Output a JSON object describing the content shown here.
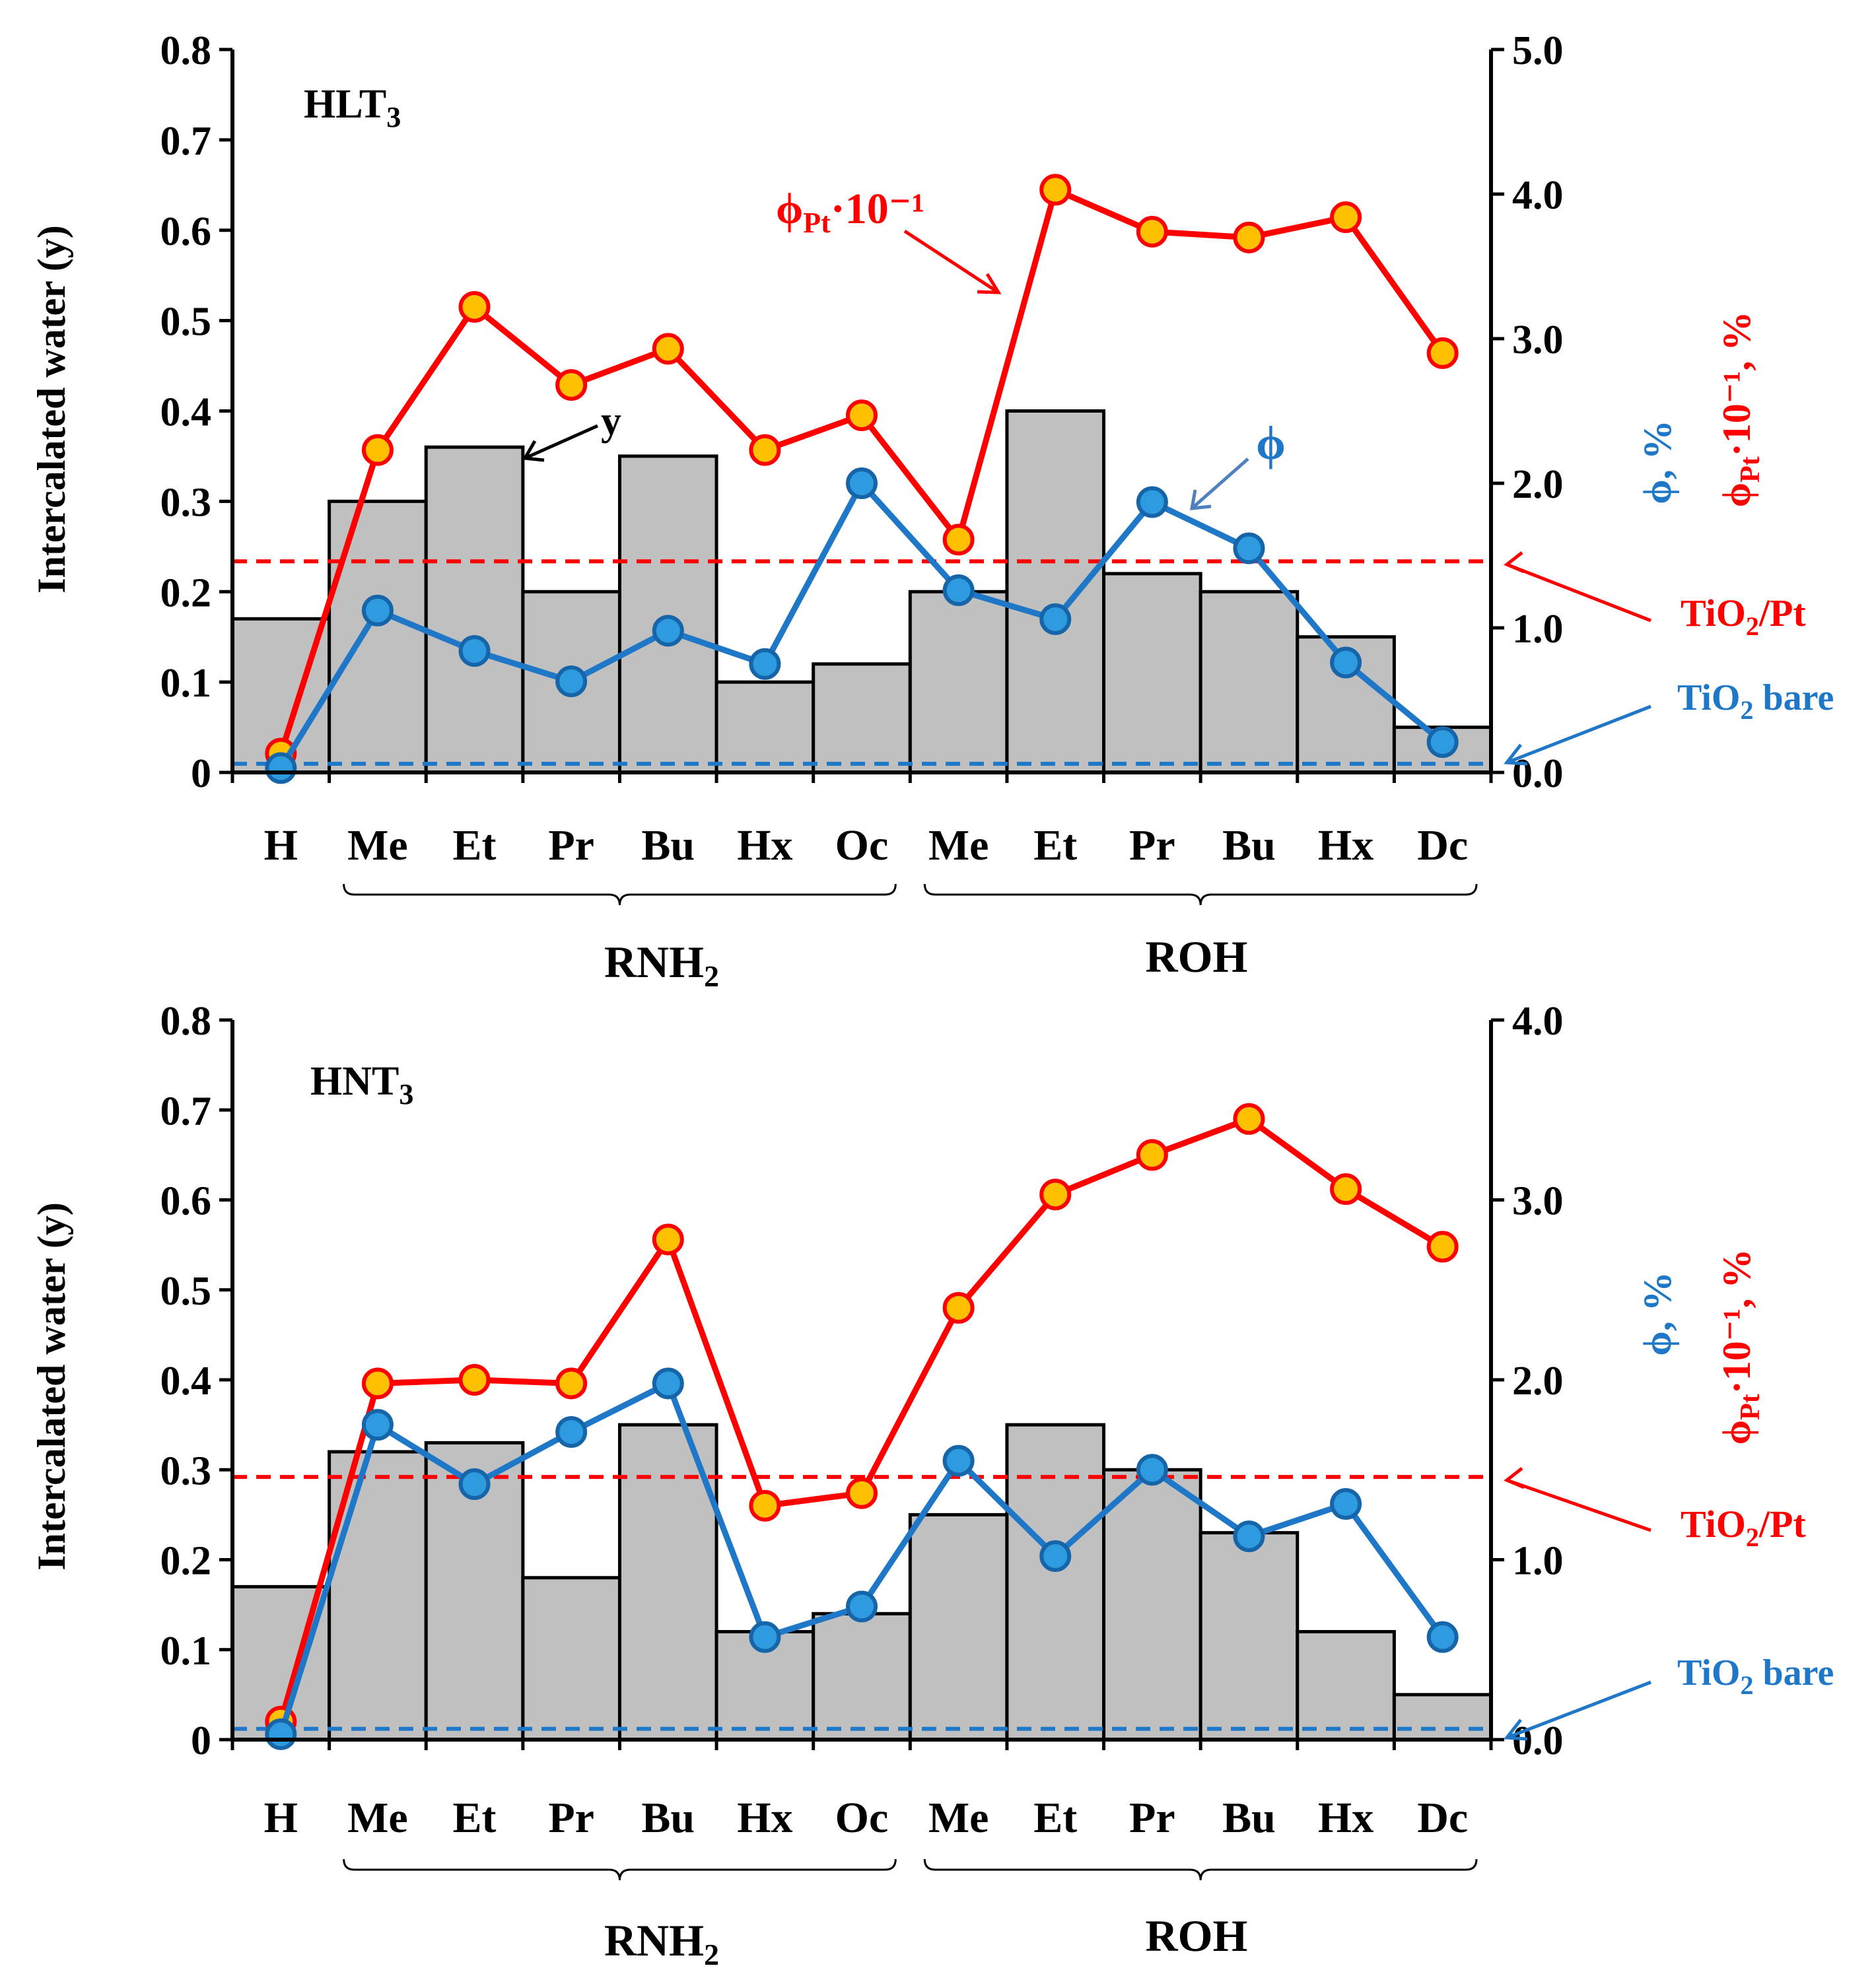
{
  "colors": {
    "bar_fill": "#c0c0c0",
    "bar_stroke": "#000000",
    "phi": "#1f77c8",
    "phi_pt": "#ff0000",
    "phi_pt_marker": "#ffc000"
  },
  "categories": [
    "H",
    "Me",
    "Et",
    "Pr",
    "Bu",
    "Hx",
    "Oc",
    "Me",
    "Et",
    "Pr",
    "Bu",
    "Hx",
    "Dc"
  ],
  "groups": [
    {
      "label": "RNH",
      "sub": "2"
    },
    {
      "label": "ROH",
      "sub": ""
    }
  ],
  "chart_data": [
    {
      "type": "bar",
      "panel": "HLT3",
      "panel_label": "HLT",
      "panel_sub": "3",
      "ylabel_left": "Intercalated water (y)",
      "ylabel_phi": "ϕ, %",
      "ylabel_phipt": "ϕ",
      "ylabel_phipt_sub": "Pt",
      "ylabel_phipt_rest": "·10⁻¹, %",
      "ylim_left": [
        0,
        0.8
      ],
      "ylim_right": [
        0,
        5.0
      ],
      "yticks_left": [
        "0",
        "0.1",
        "0.2",
        "0.3",
        "0.4",
        "0.5",
        "0.6",
        "0.7",
        "0.8"
      ],
      "yticks_right": [
        "0.0",
        "1.0",
        "2.0",
        "3.0",
        "4.0",
        "5.0"
      ],
      "y_bars": [
        0.17,
        0.3,
        0.36,
        0.2,
        0.35,
        0.1,
        0.12,
        0.2,
        0.4,
        0.22,
        0.2,
        0.15,
        0.05
      ],
      "phi": [
        0.03,
        1.12,
        0.84,
        0.63,
        0.98,
        0.75,
        2.0,
        1.26,
        1.06,
        1.87,
        1.55,
        0.76,
        0.21
      ],
      "phi_pt": [
        0.13,
        2.23,
        3.22,
        2.68,
        2.93,
        2.23,
        2.47,
        1.61,
        4.03,
        3.74,
        3.7,
        3.84,
        2.9
      ],
      "ref_tio2_pt": 1.46,
      "ref_tio2_bare": 0.06,
      "ann_y": "y",
      "ann_phi": "ϕ",
      "ann_phipt": "ϕ",
      "ann_phipt_sub": "Pt",
      "ann_phipt_rest": "·10⁻¹",
      "ann_tio2_pt": "TiO",
      "ann_tio2_pt_sub": "2",
      "ann_tio2_pt_rest": "/Pt",
      "ann_tio2_bare": "TiO",
      "ann_tio2_bare_sub": "2",
      "ann_tio2_bare_rest": " bare"
    },
    {
      "type": "bar",
      "panel": "HNT3",
      "panel_label": "HNT",
      "panel_sub": "3",
      "ylabel_left": "Intercalated water (y)",
      "ylabel_phi": "ϕ, %",
      "ylabel_phipt": "ϕ",
      "ylabel_phipt_sub": "Pt",
      "ylabel_phipt_rest": "·10⁻¹, %",
      "ylim_left": [
        0,
        0.8
      ],
      "ylim_right": [
        0,
        4.0
      ],
      "yticks_left": [
        "0",
        "0.1",
        "0.2",
        "0.3",
        "0.4",
        "0.5",
        "0.6",
        "0.7",
        "0.8"
      ],
      "yticks_right": [
        "0.0",
        "1.0",
        "2.0",
        "3.0",
        "4.0"
      ],
      "y_bars": [
        0.17,
        0.32,
        0.33,
        0.18,
        0.35,
        0.12,
        0.14,
        0.25,
        0.35,
        0.3,
        0.23,
        0.12,
        0.05
      ],
      "phi": [
        0.03,
        1.75,
        1.42,
        1.71,
        1.98,
        0.57,
        0.74,
        1.55,
        1.02,
        1.5,
        1.13,
        1.31,
        0.57
      ],
      "phi_pt": [
        0.1,
        1.98,
        2.0,
        1.98,
        2.78,
        1.3,
        1.37,
        2.4,
        3.03,
        3.25,
        3.45,
        3.06,
        2.74
      ],
      "ref_tio2_pt": 1.46,
      "ref_tio2_bare": 0.06,
      "ann_tio2_pt": "TiO",
      "ann_tio2_pt_sub": "2",
      "ann_tio2_pt_rest": "/Pt",
      "ann_tio2_bare": "TiO",
      "ann_tio2_bare_sub": "2",
      "ann_tio2_bare_rest": " bare"
    }
  ]
}
